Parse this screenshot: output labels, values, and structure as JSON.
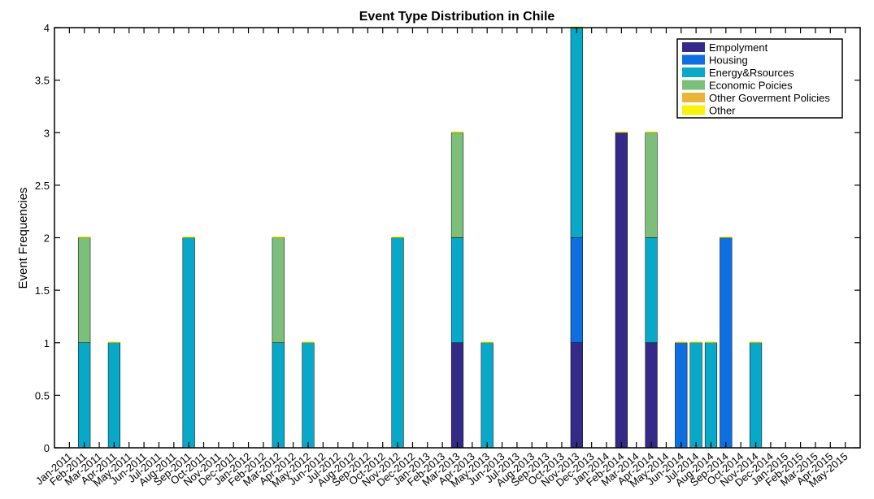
{
  "chart_data": {
    "type": "bar",
    "stacked": true,
    "title": "Event Type Distribution in Chile",
    "xlabel": "",
    "ylabel": "Event Frequencies",
    "ylim": [
      0,
      4
    ],
    "yticks": [
      "0",
      "0.5",
      "1",
      "1.5",
      "2",
      "2.5",
      "3",
      "3.5",
      "4"
    ],
    "grid": false,
    "legend_position": "top-right",
    "categories": [
      "Jan-2011",
      "Feb-2011",
      "Mar-2011",
      "Apr-2011",
      "May-2011",
      "Jun-2011",
      "Jul-2011",
      "Aug-2011",
      "Sep-2011",
      "Oct-2011",
      "Nov-2011",
      "Dec-2011",
      "Jan-2012",
      "Feb-2012",
      "Mar-2012",
      "Apr-2012",
      "May-2012",
      "Jun-2012",
      "Jul-2012",
      "Aug-2012",
      "Sep-2012",
      "Oct-2012",
      "Nov-2012",
      "Dec-2012",
      "Jan-2013",
      "Feb-2013",
      "Mar-2013",
      "Apr-2013",
      "May-2013",
      "Jun-2013",
      "Jul-2013",
      "Aug-2013",
      "Sep-2013",
      "Oct-2013",
      "Nov-2013",
      "Dec-2013",
      "Jan-2014",
      "Feb-2014",
      "Mar-2014",
      "Apr-2014",
      "May-2014",
      "Jun-2014",
      "Jul-2014",
      "Aug-2014",
      "Sep-2014",
      "Oct-2014",
      "Nov-2014",
      "Dec-2014",
      "Jan-2015",
      "Feb-2015",
      "Mar-2015",
      "Apr-2015",
      "May-2015"
    ],
    "series": [
      {
        "name": "Empolyment",
        "color": "#352a87",
        "values": [
          0,
          0,
          0,
          0,
          0,
          0,
          0,
          0,
          0,
          0,
          0,
          0,
          0,
          0,
          0,
          0,
          0,
          0,
          0,
          0,
          0,
          0,
          0,
          0,
          0,
          0,
          1,
          0,
          0,
          0,
          0,
          0,
          0,
          0,
          1,
          0,
          0,
          3,
          0,
          1,
          0,
          0,
          0,
          0,
          0,
          0,
          0,
          0,
          0,
          0,
          0,
          0,
          0
        ]
      },
      {
        "name": "Housing",
        "color": "#0f6ee0",
        "values": [
          0,
          0,
          0,
          0,
          0,
          0,
          0,
          0,
          0,
          0,
          0,
          0,
          0,
          0,
          0,
          0,
          0,
          0,
          0,
          0,
          0,
          0,
          0,
          0,
          0,
          0,
          0,
          0,
          0,
          0,
          0,
          0,
          0,
          0,
          1,
          0,
          0,
          0,
          0,
          0,
          0,
          1,
          0,
          0,
          2,
          0,
          0,
          0,
          0,
          0,
          0,
          0,
          0
        ]
      },
      {
        "name": "Energy&Rsources",
        "color": "#08a8c8",
        "values": [
          0,
          1,
          0,
          1,
          0,
          0,
          0,
          0,
          2,
          0,
          0,
          0,
          0,
          0,
          1,
          0,
          1,
          0,
          0,
          0,
          0,
          0,
          2,
          0,
          0,
          0,
          1,
          0,
          1,
          0,
          0,
          0,
          0,
          0,
          2,
          0,
          0,
          0,
          0,
          1,
          0,
          0,
          1,
          1,
          0,
          0,
          1,
          0,
          0,
          0,
          0,
          0,
          0
        ]
      },
      {
        "name": "Economic Poicies",
        "color": "#7cbf7b",
        "values": [
          0,
          1,
          0,
          0,
          0,
          0,
          0,
          0,
          0,
          0,
          0,
          0,
          0,
          0,
          1,
          0,
          0,
          0,
          0,
          0,
          0,
          0,
          0,
          0,
          0,
          0,
          1,
          0,
          0,
          0,
          0,
          0,
          0,
          0,
          0,
          0,
          0,
          0,
          0,
          1,
          0,
          0,
          0,
          0,
          0,
          0,
          0,
          0,
          0,
          0,
          0,
          0,
          0
        ]
      },
      {
        "name": "Other Goverment Policies",
        "color": "#e9b63a",
        "values": [
          0,
          0,
          0,
          0,
          0,
          0,
          0,
          0,
          0,
          0,
          0,
          0,
          0,
          0,
          0,
          0,
          0,
          0,
          0,
          0,
          0,
          0,
          0,
          0,
          0,
          0,
          0,
          0,
          0,
          0,
          0,
          0,
          0,
          0,
          0,
          0,
          0,
          0,
          0,
          0,
          0,
          0,
          0,
          0,
          0,
          0,
          0,
          0,
          0,
          0,
          0,
          0,
          0
        ]
      },
      {
        "name": "Other",
        "color": "#f7f20e",
        "values": [
          0,
          0,
          0,
          0,
          0,
          0,
          0,
          0,
          0,
          0,
          0,
          0,
          0,
          0,
          0,
          0,
          0,
          0,
          0,
          0,
          0,
          0,
          0,
          0,
          0,
          0,
          0,
          0,
          0,
          0,
          0,
          0,
          0,
          0,
          0,
          0,
          0,
          0,
          0,
          0,
          0,
          0,
          0,
          0,
          0,
          0,
          0,
          0,
          0,
          0,
          0,
          0,
          0
        ]
      }
    ]
  }
}
